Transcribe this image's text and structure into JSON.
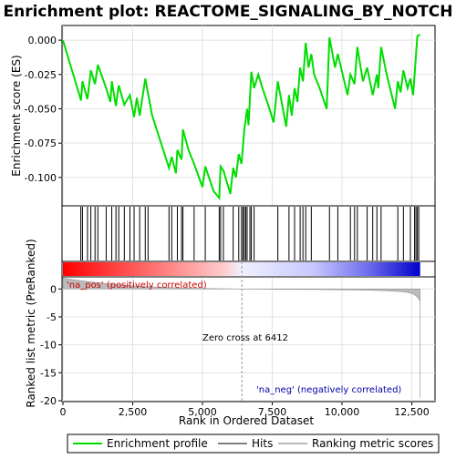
{
  "chart_data": {
    "type": "line",
    "title": "Enrichment plot: REACTOME_SIGNALING_BY_NOTCH",
    "colors": {
      "enrichment_line": "#00dd00",
      "hits": "#000000",
      "metric_fill": "#bbbbbb",
      "positive_label": "#cc0000",
      "negative_label": "#0000aa",
      "zero_cross_line": "#999999",
      "heat_low": "#ff0000",
      "heat_high": "#0000cc"
    },
    "es_panel": {
      "ylabel": "Enrichment score (ES)",
      "ylim": [
        -0.12,
        0.01
      ],
      "yticks": [
        0.0,
        -0.025,
        -0.05,
        -0.075,
        -0.1
      ],
      "ytick_labels": [
        "0.000",
        "-0.025",
        "-0.050",
        "-0.075",
        "-0.100"
      ],
      "grid": true
    },
    "metric_panel": {
      "ylabel": "Ranked list metric (PreRanked)",
      "xlabel": "Rank in Ordered Dataset",
      "ylim": [
        -20,
        2
      ],
      "yticks": [
        0,
        -5,
        -10,
        -15,
        -20
      ],
      "xlim": [
        0,
        13300
      ],
      "xticks": [
        0,
        2500,
        5000,
        7500,
        10000,
        12500
      ],
      "xtick_labels": [
        "0",
        "2,500",
        "5,000",
        "7,500",
        "10,000",
        "12,500"
      ],
      "grid": true,
      "pos_label": "'na_pos' (positively correlated)",
      "neg_label": "'na_neg' (negatively correlated)",
      "zero_cross_label": "Zero cross at 6412",
      "zero_cross": 6412
    },
    "n_genes": 12800,
    "legend": {
      "items": [
        "Enrichment profile",
        "Hits",
        "Ranking metric scores"
      ],
      "placement": "bottom"
    },
    "es_curve": [
      [
        0,
        0.0
      ],
      [
        650,
        -0.044
      ],
      [
        700,
        -0.03
      ],
      [
        880,
        -0.043
      ],
      [
        1000,
        -0.022
      ],
      [
        1150,
        -0.032
      ],
      [
        1250,
        -0.018
      ],
      [
        1550,
        -0.035
      ],
      [
        1700,
        -0.045
      ],
      [
        1750,
        -0.03
      ],
      [
        1900,
        -0.048
      ],
      [
        2000,
        -0.033
      ],
      [
        2200,
        -0.047
      ],
      [
        2400,
        -0.04
      ],
      [
        2550,
        -0.056
      ],
      [
        2650,
        -0.042
      ],
      [
        2750,
        -0.055
      ],
      [
        2950,
        -0.028
      ],
      [
        3200,
        -0.055
      ],
      [
        3800,
        -0.093
      ],
      [
        3900,
        -0.085
      ],
      [
        4050,
        -0.097
      ],
      [
        4100,
        -0.08
      ],
      [
        4250,
        -0.087
      ],
      [
        4300,
        -0.065
      ],
      [
        4500,
        -0.08
      ],
      [
        4700,
        -0.09
      ],
      [
        5000,
        -0.107
      ],
      [
        5100,
        -0.092
      ],
      [
        5400,
        -0.11
      ],
      [
        5600,
        -0.115
      ],
      [
        5650,
        -0.092
      ],
      [
        5750,
        -0.095
      ],
      [
        6000,
        -0.112
      ],
      [
        6100,
        -0.093
      ],
      [
        6200,
        -0.1
      ],
      [
        6300,
        -0.083
      ],
      [
        6400,
        -0.09
      ],
      [
        6500,
        -0.065
      ],
      [
        6600,
        -0.05
      ],
      [
        6650,
        -0.062
      ],
      [
        6750,
        -0.023
      ],
      [
        6850,
        -0.035
      ],
      [
        7000,
        -0.025
      ],
      [
        7150,
        -0.035
      ],
      [
        7400,
        -0.05
      ],
      [
        7550,
        -0.06
      ],
      [
        7700,
        -0.03
      ],
      [
        8000,
        -0.063
      ],
      [
        8100,
        -0.04
      ],
      [
        8200,
        -0.055
      ],
      [
        8300,
        -0.035
      ],
      [
        8400,
        -0.045
      ],
      [
        8500,
        -0.02
      ],
      [
        8600,
        -0.03
      ],
      [
        8700,
        -0.002
      ],
      [
        8800,
        -0.02
      ],
      [
        8900,
        -0.01
      ],
      [
        9000,
        -0.025
      ],
      [
        9200,
        -0.035
      ],
      [
        9450,
        -0.05
      ],
      [
        9550,
        0.002
      ],
      [
        9750,
        -0.02
      ],
      [
        9850,
        -0.01
      ],
      [
        10200,
        -0.04
      ],
      [
        10300,
        -0.025
      ],
      [
        10450,
        -0.032
      ],
      [
        10550,
        -0.005
      ],
      [
        10750,
        -0.03
      ],
      [
        10900,
        -0.02
      ],
      [
        11100,
        -0.04
      ],
      [
        11250,
        -0.025
      ],
      [
        11300,
        -0.035
      ],
      [
        11400,
        -0.005
      ],
      [
        11600,
        -0.025
      ],
      [
        11900,
        -0.05
      ],
      [
        12000,
        -0.03
      ],
      [
        12100,
        -0.038
      ],
      [
        12200,
        -0.022
      ],
      [
        12350,
        -0.035
      ],
      [
        12450,
        -0.028
      ],
      [
        12550,
        -0.04
      ],
      [
        12700,
        0.003
      ],
      [
        12800,
        0.004
      ]
    ],
    "hits": [
      640,
      700,
      880,
      1000,
      1150,
      1250,
      1550,
      1750,
      1900,
      2000,
      2200,
      2400,
      2550,
      2750,
      2950,
      3050,
      3800,
      3900,
      4100,
      4250,
      4300,
      4700,
      5100,
      5600,
      5650,
      5750,
      6100,
      6300,
      6400,
      6450,
      6500,
      6550,
      6600,
      6700,
      6750,
      6850,
      7700,
      8100,
      8300,
      8500,
      8600,
      8700,
      8900,
      9550,
      9850,
      10300,
      10450,
      10550,
      10900,
      11100,
      11250,
      11400,
      12000,
      12200,
      12450,
      12600,
      12650,
      12700,
      12750
    ]
  }
}
